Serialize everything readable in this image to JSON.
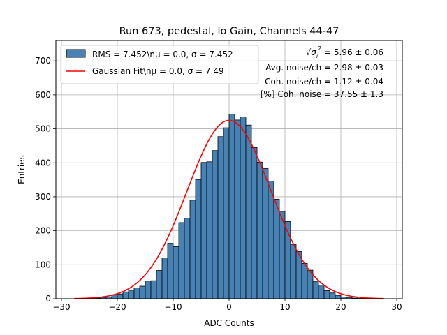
{
  "chart_data": {
    "type": "bar",
    "title": "Run 673, pedestal, lo Gain, Channels 44-47",
    "xlabel": "ADC Counts",
    "ylabel": "Entries",
    "xlim": [
      -31,
      31
    ],
    "ylim": [
      0,
      760
    ],
    "xticks": [
      -30,
      -20,
      -10,
      0,
      10,
      20,
      30
    ],
    "yticks": [
      0,
      100,
      200,
      300,
      400,
      500,
      600,
      700
    ],
    "grid": true,
    "legend_position": "top-left",
    "colors": {
      "bars": "#4682b4",
      "bar_edge": "#000000",
      "fit": "#ff0000",
      "grid": "#b0b0b0"
    },
    "series": [
      {
        "name": "RMS = 7.452\\nμ = 0.0, σ = 7.452",
        "kind": "histogram",
        "bin_width": 1,
        "bin_left_edges": [
          -28,
          -27,
          -26,
          -25,
          -24,
          -23,
          -22,
          -21,
          -20,
          -19,
          -18,
          -17,
          -16,
          -15,
          -14,
          -13,
          -12,
          -11,
          -10,
          -9,
          -8,
          -7,
          -6,
          -5,
          -4,
          -3,
          -2,
          -1,
          0,
          1,
          2,
          3,
          4,
          5,
          6,
          7,
          8,
          9,
          10,
          11,
          12,
          13,
          14,
          15,
          16,
          17,
          18,
          19,
          20,
          21,
          22,
          23,
          24,
          25,
          26
        ],
        "values": [
          0,
          0,
          1,
          1,
          2,
          4,
          5,
          11,
          14,
          20,
          25,
          32,
          37,
          52,
          53,
          83,
          120,
          163,
          153,
          224,
          237,
          290,
          351,
          401,
          403,
          436,
          477,
          503,
          543,
          526,
          535,
          511,
          445,
          402,
          383,
          346,
          293,
          257,
          227,
          160,
          139,
          104,
          84,
          50,
          40,
          24,
          17,
          10,
          5,
          4,
          2,
          1,
          1,
          0,
          0
        ]
      },
      {
        "name": "Gaussian Fit\\nμ = 0.0, σ = 7.49",
        "kind": "line",
        "mu": 0.0,
        "sigma": 7.49,
        "amplitude": 525,
        "x_range": [
          -27.7,
          27.7
        ]
      }
    ],
    "annotations": [
      {
        "prefix": "√",
        "base": "σ",
        "sub": "i",
        "sup": "2",
        "text": " = 5.96 ± 0.06"
      },
      {
        "text": "Avg. noise/ch = 2.98 ± 0.03"
      },
      {
        "text": "Coh. noise/ch = 1.12 ± 0.04"
      },
      {
        "text": "[%] Coh. noise = 37.55 ± 1.3"
      }
    ]
  }
}
